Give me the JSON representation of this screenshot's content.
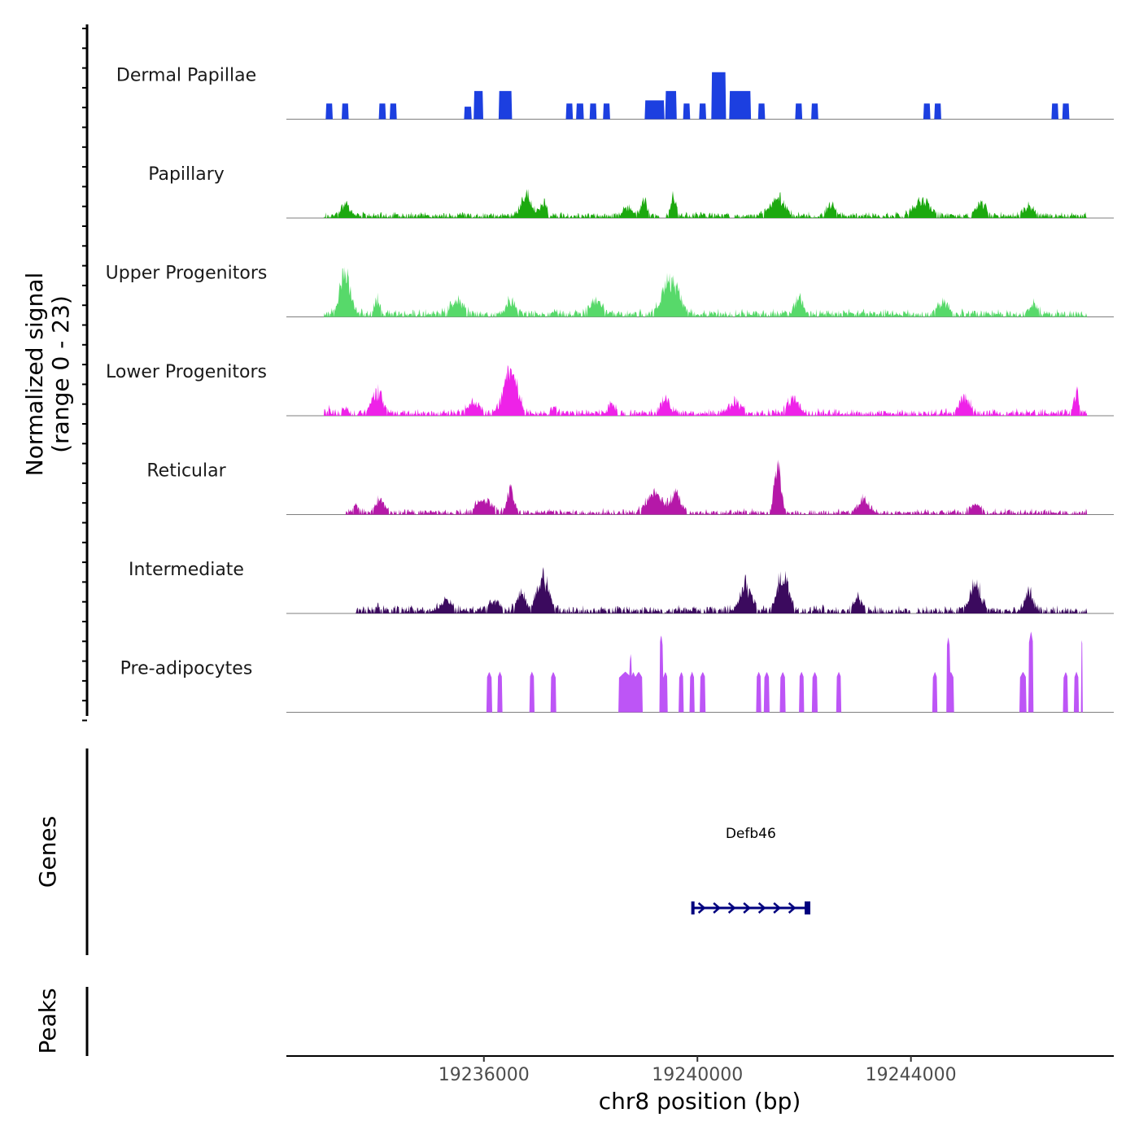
{
  "chart_data": {
    "type": "area",
    "title": "",
    "chromosome": "chr8",
    "xlabel": "chr8 position (bp)",
    "ylabel": "Normalized signal",
    "ylabel_range": "(range 0 - 23)",
    "xlim": [
      19232300,
      19247800
    ],
    "ylim": [
      0,
      23
    ],
    "x_ticks": [
      19236000,
      19240000,
      19244000
    ],
    "x_tick_labels": [
      "19236000",
      "19240000",
      "19244000"
    ],
    "signal_start": 19233000,
    "signal_end": 19247800,
    "tracks": [
      {
        "name": "Dermal Papillae",
        "color": "#1c3fe0",
        "seed": 11,
        "style": "blocky",
        "baseline": 0.5,
        "peaks": [
          {
            "x": 19233100,
            "h": 5,
            "w": 60
          },
          {
            "x": 19233400,
            "h": 5,
            "w": 60
          },
          {
            "x": 19234100,
            "h": 5,
            "w": 60
          },
          {
            "x": 19234300,
            "h": 5,
            "w": 60
          },
          {
            "x": 19235700,
            "h": 4,
            "w": 60
          },
          {
            "x": 19235900,
            "h": 9,
            "w": 80
          },
          {
            "x": 19236400,
            "h": 9,
            "w": 120
          },
          {
            "x": 19237600,
            "h": 5,
            "w": 60
          },
          {
            "x": 19237800,
            "h": 5,
            "w": 60
          },
          {
            "x": 19238050,
            "h": 5,
            "w": 60
          },
          {
            "x": 19238300,
            "h": 5,
            "w": 60
          },
          {
            "x": 19239200,
            "h": 6,
            "w": 180
          },
          {
            "x": 19239500,
            "h": 9,
            "w": 100
          },
          {
            "x": 19239800,
            "h": 5,
            "w": 60
          },
          {
            "x": 19240100,
            "h": 5,
            "w": 60
          },
          {
            "x": 19240400,
            "h": 15,
            "w": 130
          },
          {
            "x": 19240700,
            "h": 9,
            "w": 100
          },
          {
            "x": 19240900,
            "h": 9,
            "w": 100
          },
          {
            "x": 19241200,
            "h": 5,
            "w": 60
          },
          {
            "x": 19241900,
            "h": 5,
            "w": 60
          },
          {
            "x": 19242200,
            "h": 5,
            "w": 60
          },
          {
            "x": 19244300,
            "h": 5,
            "w": 60
          },
          {
            "x": 19244500,
            "h": 5,
            "w": 60
          },
          {
            "x": 19246700,
            "h": 5,
            "w": 60
          },
          {
            "x": 19246900,
            "h": 5,
            "w": 60
          }
        ]
      },
      {
        "name": "Papillary",
        "color": "#1ca90f",
        "seed": 23,
        "style": "noisy",
        "baseline": 0.6,
        "gaps": [
          [
            19239300,
            19239400
          ],
          [
            19240600,
            19240700
          ]
        ],
        "peaks": [
          {
            "x": 19233400,
            "h": 4,
            "w": 150
          },
          {
            "x": 19236800,
            "h": 8,
            "w": 180
          },
          {
            "x": 19237100,
            "h": 5,
            "w": 120
          },
          {
            "x": 19238700,
            "h": 3,
            "w": 150
          },
          {
            "x": 19239000,
            "h": 5,
            "w": 120
          },
          {
            "x": 19239550,
            "h": 6,
            "w": 100
          },
          {
            "x": 19241500,
            "h": 6,
            "w": 250
          },
          {
            "x": 19242500,
            "h": 4,
            "w": 150
          },
          {
            "x": 19244200,
            "h": 5,
            "w": 300
          },
          {
            "x": 19245300,
            "h": 4,
            "w": 200
          },
          {
            "x": 19246200,
            "h": 3,
            "w": 200
          }
        ]
      },
      {
        "name": "Upper Progenitors",
        "color": "#57d96a",
        "seed": 37,
        "style": "noisy",
        "baseline": 0.8,
        "peaks": [
          {
            "x": 19233400,
            "h": 13,
            "w": 200
          },
          {
            "x": 19234000,
            "h": 5,
            "w": 100
          },
          {
            "x": 19235500,
            "h": 4,
            "w": 250
          },
          {
            "x": 19236500,
            "h": 4,
            "w": 150
          },
          {
            "x": 19238100,
            "h": 5,
            "w": 200
          },
          {
            "x": 19239500,
            "h": 12,
            "w": 300
          },
          {
            "x": 19241900,
            "h": 5,
            "w": 150
          },
          {
            "x": 19244600,
            "h": 4,
            "w": 200
          },
          {
            "x": 19246300,
            "h": 3,
            "w": 150
          }
        ]
      },
      {
        "name": "Lower Progenitors",
        "color": "#ee22e8",
        "seed": 41,
        "style": "noisy",
        "baseline": 0.7,
        "peaks": [
          {
            "x": 19233100,
            "h": 2,
            "w": 40
          },
          {
            "x": 19233400,
            "h": 2,
            "w": 100
          },
          {
            "x": 19234000,
            "h": 7,
            "w": 200
          },
          {
            "x": 19235800,
            "h": 4,
            "w": 200
          },
          {
            "x": 19236500,
            "h": 14,
            "w": 250
          },
          {
            "x": 19237300,
            "h": 2,
            "w": 80
          },
          {
            "x": 19238400,
            "h": 3,
            "w": 120
          },
          {
            "x": 19239400,
            "h": 5,
            "w": 150
          },
          {
            "x": 19240700,
            "h": 4,
            "w": 200
          },
          {
            "x": 19241800,
            "h": 5,
            "w": 200
          },
          {
            "x": 19245000,
            "h": 5,
            "w": 200
          },
          {
            "x": 19247100,
            "h": 7,
            "w": 80
          }
        ]
      },
      {
        "name": "Reticular",
        "color": "#b518a8",
        "seed": 53,
        "style": "noisy",
        "baseline": 0.6,
        "gaps": [
          [
            19232400,
            19233400
          ]
        ],
        "peaks": [
          {
            "x": 19233600,
            "h": 2,
            "w": 100
          },
          {
            "x": 19234050,
            "h": 5,
            "w": 150
          },
          {
            "x": 19236000,
            "h": 4,
            "w": 300
          },
          {
            "x": 19236500,
            "h": 8,
            "w": 120
          },
          {
            "x": 19239200,
            "h": 6,
            "w": 300
          },
          {
            "x": 19239600,
            "h": 6,
            "w": 200
          },
          {
            "x": 19241500,
            "h": 15,
            "w": 120
          },
          {
            "x": 19243100,
            "h": 4,
            "w": 200
          },
          {
            "x": 19245200,
            "h": 3,
            "w": 200
          }
        ]
      },
      {
        "name": "Intermediate",
        "color": "#3b0a5e",
        "seed": 67,
        "style": "noisy",
        "baseline": 0.8,
        "gaps": [
          [
            19232400,
            19233600
          ],
          [
            19244000,
            19244100
          ]
        ],
        "peaks": [
          {
            "x": 19234000,
            "h": 2,
            "w": 100
          },
          {
            "x": 19235300,
            "h": 3,
            "w": 200
          },
          {
            "x": 19236200,
            "h": 3,
            "w": 200
          },
          {
            "x": 19236700,
            "h": 6,
            "w": 150
          },
          {
            "x": 19237100,
            "h": 12,
            "w": 200
          },
          {
            "x": 19240900,
            "h": 9,
            "w": 200
          },
          {
            "x": 19241600,
            "h": 12,
            "w": 200
          },
          {
            "x": 19243000,
            "h": 4,
            "w": 150
          },
          {
            "x": 19245200,
            "h": 9,
            "w": 200
          },
          {
            "x": 19246200,
            "h": 6,
            "w": 150
          }
        ]
      },
      {
        "name": "Pre-adipocytes",
        "color": "#bd55f6",
        "seed": 79,
        "style": "spiky",
        "baseline": 0,
        "peaks": [
          {
            "x": 19236100,
            "h": 13,
            "w": 45
          },
          {
            "x": 19236300,
            "h": 13,
            "w": 45
          },
          {
            "x": 19236900,
            "h": 13,
            "w": 45
          },
          {
            "x": 19237300,
            "h": 13,
            "w": 45
          },
          {
            "x": 19238650,
            "h": 13,
            "w": 120
          },
          {
            "x": 19238800,
            "h": 13,
            "w": 40
          },
          {
            "x": 19238900,
            "h": 13,
            "w": 70
          },
          {
            "x": 19238750,
            "h": 19,
            "w": 15
          },
          {
            "x": 19239320,
            "h": 25,
            "w": 30
          },
          {
            "x": 19239400,
            "h": 13,
            "w": 40
          },
          {
            "x": 19239700,
            "h": 13,
            "w": 40
          },
          {
            "x": 19239900,
            "h": 13,
            "w": 40
          },
          {
            "x": 19240100,
            "h": 13,
            "w": 50
          },
          {
            "x": 19241150,
            "h": 13,
            "w": 45
          },
          {
            "x": 19241300,
            "h": 13,
            "w": 45
          },
          {
            "x": 19241600,
            "h": 13,
            "w": 45
          },
          {
            "x": 19241950,
            "h": 13,
            "w": 45
          },
          {
            "x": 19242200,
            "h": 13,
            "w": 45
          },
          {
            "x": 19242650,
            "h": 13,
            "w": 45
          },
          {
            "x": 19244450,
            "h": 13,
            "w": 40
          },
          {
            "x": 19244700,
            "h": 24,
            "w": 35
          },
          {
            "x": 19244750,
            "h": 13,
            "w": 50
          },
          {
            "x": 19246100,
            "h": 13,
            "w": 60
          },
          {
            "x": 19246250,
            "h": 26,
            "w": 40
          },
          {
            "x": 19246900,
            "h": 13,
            "w": 40
          },
          {
            "x": 19247100,
            "h": 13,
            "w": 40
          },
          {
            "x": 19247200,
            "h": 24,
            "w": 15
          }
        ]
      }
    ],
    "genes": [
      {
        "name": "Defb46",
        "start": 19239900,
        "end": 19242100,
        "strand": "+",
        "color": "#00007f"
      }
    ],
    "panels": {
      "genes_label": "Genes",
      "peaks_label": "Peaks"
    }
  }
}
